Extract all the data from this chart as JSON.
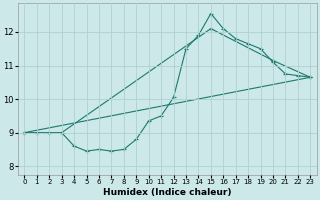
{
  "xlabel": "Humidex (Indice chaleur)",
  "xlim": [
    -0.5,
    23.5
  ],
  "ylim": [
    7.75,
    12.85
  ],
  "xticks": [
    0,
    1,
    2,
    3,
    4,
    5,
    6,
    7,
    8,
    9,
    10,
    11,
    12,
    13,
    14,
    15,
    16,
    17,
    18,
    19,
    20,
    21,
    22,
    23
  ],
  "yticks": [
    8,
    9,
    10,
    11,
    12
  ],
  "line_color": "#1a7a6e",
  "background_color": "#cce8e8",
  "grid_color": "#b0d0d0",
  "line1_x": [
    0,
    1,
    2,
    3,
    4,
    5,
    6,
    7,
    8,
    9,
    10,
    11,
    12,
    13,
    14,
    15,
    16,
    17,
    18,
    19,
    20,
    21,
    22,
    23
  ],
  "line1_y": [
    9.0,
    9.0,
    9.0,
    9.0,
    8.6,
    8.45,
    8.5,
    8.45,
    8.5,
    8.8,
    9.35,
    9.5,
    10.05,
    11.5,
    11.9,
    12.55,
    12.1,
    11.8,
    11.65,
    11.5,
    11.1,
    10.75,
    10.7,
    10.65
  ],
  "line2_x": [
    0,
    23
  ],
  "line2_y": [
    9.0,
    10.65
  ],
  "line3_x": [
    3,
    15,
    20,
    23
  ],
  "line3_y": [
    9.0,
    12.1,
    11.15,
    10.65
  ]
}
